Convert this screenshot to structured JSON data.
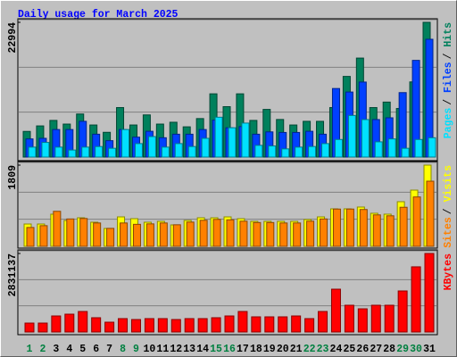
{
  "chart_data": [
    {
      "type": "bar",
      "title": "Daily usage for March 2025",
      "ylim": [
        0,
        22994
      ],
      "yticks": [
        22994
      ],
      "legend_separator": "/",
      "series": [
        {
          "name": "Hits",
          "color": "#00805c",
          "values": [
            4379,
            5318,
            6256,
            5630,
            7351,
            5474,
            4223,
            8446,
            5474,
            7194,
            5630,
            5943,
            5161,
            6569,
            10792,
            8602,
            10792,
            6256,
            8133,
            6413,
            5474,
            6100,
            6100,
            8446,
            13763,
            16891,
            8446,
            9384,
            8289,
            12825,
            22994
          ]
        },
        {
          "name": "Files",
          "color": "#0040ff",
          "values": [
            3100,
            3200,
            4700,
            4700,
            6100,
            3900,
            2800,
            4700,
            3400,
            4400,
            3300,
            3900,
            3900,
            4700,
            6300,
            5000,
            5200,
            3900,
            4300,
            4200,
            4200,
            4400,
            3900,
            11700,
            11100,
            12800,
            6400,
            6700,
            11000,
            16500,
            20100
          ]
        },
        {
          "name": "Pages",
          "color": "#00e0ff",
          "values": [
            1700,
            2500,
            1700,
            1200,
            1700,
            1800,
            1500,
            4700,
            2300,
            3500,
            1700,
            2300,
            1800,
            3200,
            6800,
            5000,
            5800,
            2000,
            1900,
            1400,
            1700,
            1800,
            2300,
            3000,
            7100,
            6400,
            2600,
            3100,
            1500,
            3000,
            3300
          ]
        }
      ]
    },
    {
      "type": "bar",
      "ylim": [
        0,
        1809
      ],
      "yticks": [
        1809
      ],
      "legend_separator": "/",
      "series": [
        {
          "name": "Visits",
          "color": "#ffff00",
          "values": [
            497,
            497,
            716,
            576,
            636,
            537,
            398,
            656,
            616,
            537,
            557,
            477,
            577,
            636,
            636,
            656,
            616,
            557,
            557,
            557,
            557,
            597,
            656,
            835,
            835,
            875,
            736,
            716,
            994,
            1252,
            1809
          ]
        },
        {
          "name": "Sites",
          "color": "#ff8000",
          "values": [
            420,
            460,
            780,
            610,
            620,
            520,
            400,
            520,
            490,
            500,
            520,
            480,
            540,
            580,
            600,
            590,
            560,
            530,
            530,
            520,
            520,
            560,
            610,
            830,
            830,
            820,
            700,
            680,
            870,
            1100,
            1451
          ]
        }
      ]
    },
    {
      "type": "bar",
      "ylim": [
        0,
        2831137
      ],
      "yticks": [
        2831137
      ],
      "categories": [
        "1",
        "2",
        "3",
        "4",
        "5",
        "6",
        "7",
        "8",
        "9",
        "10",
        "11",
        "12",
        "13",
        "14",
        "15",
        "16",
        "17",
        "18",
        "19",
        "20",
        "21",
        "22",
        "23",
        "24",
        "25",
        "26",
        "27",
        "28",
        "29",
        "30",
        "31"
      ],
      "category_colors": [
        "#008040",
        "#008040",
        "#000000",
        "#000000",
        "#000000",
        "#000000",
        "#000000",
        "#008040",
        "#008040",
        "#000000",
        "#000000",
        "#000000",
        "#000000",
        "#000000",
        "#008040",
        "#008040",
        "#000000",
        "#000000",
        "#000000",
        "#000000",
        "#000000",
        "#008040",
        "#008040",
        "#000000",
        "#000000",
        "#000000",
        "#000000",
        "#000000",
        "#008040",
        "#008040",
        "#000000"
      ],
      "series": [
        {
          "name": "KBytes",
          "color": "#ff0000",
          "values": [
            321700,
            321700,
            579000,
            643000,
            740000,
            515000,
            354000,
            483000,
            450000,
            483000,
            483000,
            450000,
            483000,
            483000,
            515000,
            579000,
            740000,
            547000,
            547000,
            547000,
            579000,
            483000,
            740000,
            1544000,
            965000,
            836000,
            965000,
            965000,
            1480000,
            2350000,
            2831137
          ]
        }
      ]
    }
  ]
}
